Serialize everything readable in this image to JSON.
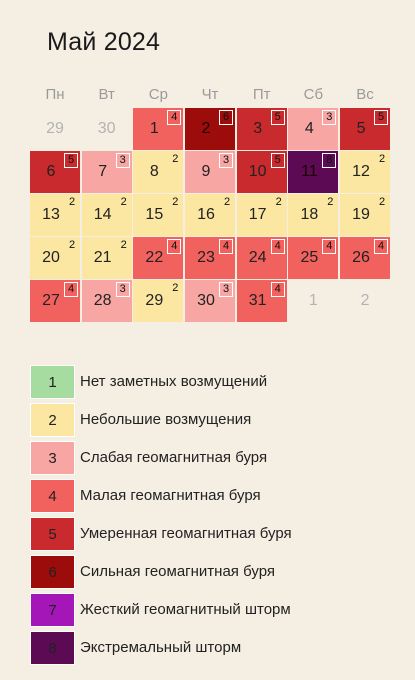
{
  "title": "Май 2024",
  "weekdays": [
    "Пн",
    "Вт",
    "Ср",
    "Чт",
    "Пт",
    "Сб",
    "Вс"
  ],
  "level_colors": {
    "1": "#a7dca0",
    "2": "#fbe6a2",
    "3": "#f7a6a4",
    "4": "#f1615e",
    "5": "#c82a2d",
    "6": "#9b0c0b",
    "7": "#a516b8",
    "8": "#5d0a55"
  },
  "weeks": [
    [
      {
        "day": "29",
        "level": null,
        "outside": true
      },
      {
        "day": "30",
        "level": null,
        "outside": true
      },
      {
        "day": "1",
        "level": 4
      },
      {
        "day": "2",
        "level": 6
      },
      {
        "day": "3",
        "level": 5
      },
      {
        "day": "4",
        "level": 3
      },
      {
        "day": "5",
        "level": 5
      }
    ],
    [
      {
        "day": "6",
        "level": 5
      },
      {
        "day": "7",
        "level": 3
      },
      {
        "day": "8",
        "level": 2
      },
      {
        "day": "9",
        "level": 3
      },
      {
        "day": "10",
        "level": 5
      },
      {
        "day": "11",
        "level": 8
      },
      {
        "day": "12",
        "level": 2
      }
    ],
    [
      {
        "day": "13",
        "level": 2
      },
      {
        "day": "14",
        "level": 2
      },
      {
        "day": "15",
        "level": 2
      },
      {
        "day": "16",
        "level": 2
      },
      {
        "day": "17",
        "level": 2
      },
      {
        "day": "18",
        "level": 2
      },
      {
        "day": "19",
        "level": 2
      }
    ],
    [
      {
        "day": "20",
        "level": 2
      },
      {
        "day": "21",
        "level": 2
      },
      {
        "day": "22",
        "level": 4
      },
      {
        "day": "23",
        "level": 4
      },
      {
        "day": "24",
        "level": 4
      },
      {
        "day": "25",
        "level": 4
      },
      {
        "day": "26",
        "level": 4
      }
    ],
    [
      {
        "day": "27",
        "level": 4
      },
      {
        "day": "28",
        "level": 3
      },
      {
        "day": "29",
        "level": 2
      },
      {
        "day": "30",
        "level": 3
      },
      {
        "day": "31",
        "level": 4
      },
      {
        "day": "1",
        "level": null,
        "outside": true
      },
      {
        "day": "2",
        "level": null,
        "outside": true
      }
    ]
  ],
  "legend": [
    {
      "level": "1",
      "label": "Нет заметных возмущений"
    },
    {
      "level": "2",
      "label": "Небольшие возмущения"
    },
    {
      "level": "3",
      "label": "Слабая геомагнитная буря"
    },
    {
      "level": "4",
      "label": "Малая геомагнитная буря"
    },
    {
      "level": "5",
      "label": "Умеренная геомагнитная буря"
    },
    {
      "level": "6",
      "label": "Сильная геомагнитная буря"
    },
    {
      "level": "7",
      "label": "Жесткий геомагнитный шторм"
    },
    {
      "level": "8",
      "label": "Экстремальный шторм"
    }
  ]
}
